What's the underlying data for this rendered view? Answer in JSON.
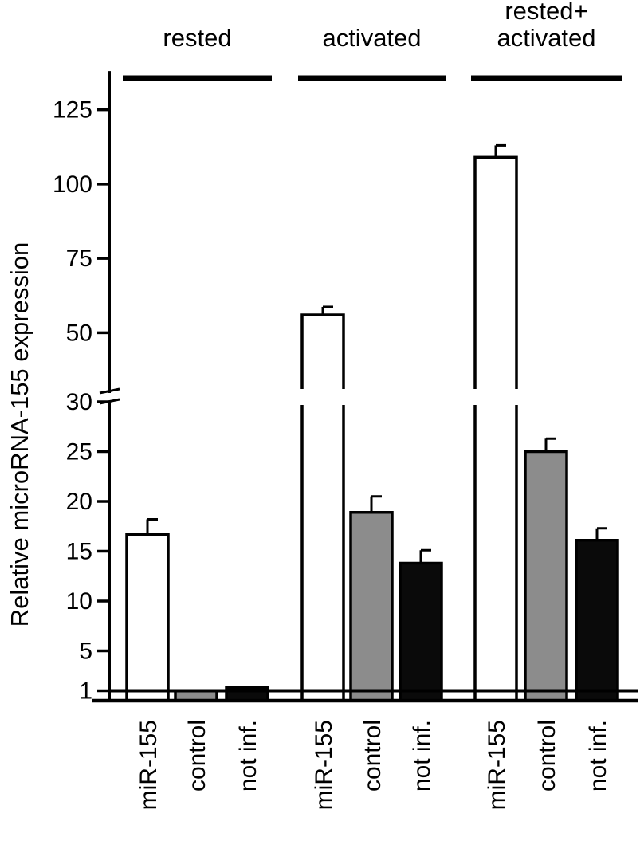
{
  "chart_data": {
    "type": "bar",
    "title": "",
    "xlabel": "",
    "ylabel": "Relative microRNA-155 expression",
    "y_axis": {
      "broken": true,
      "lower_segment": {
        "range": [
          0,
          30
        ],
        "ticks": [
          1,
          5,
          10,
          15,
          20,
          25,
          30
        ]
      },
      "upper_segment": {
        "range": [
          30,
          138
        ],
        "ticks": [
          50,
          75,
          100,
          125
        ]
      },
      "reference_line": 1
    },
    "groups": [
      {
        "label": "rested",
        "label_lines": [
          "rested"
        ],
        "category_indices": [
          0,
          1,
          2
        ]
      },
      {
        "label": "activated",
        "label_lines": [
          "activated"
        ],
        "category_indices": [
          3,
          4,
          5
        ]
      },
      {
        "label": "rested+ activated",
        "label_lines": [
          "rested+",
          "activated"
        ],
        "category_indices": [
          6,
          7,
          8
        ]
      }
    ],
    "categories": [
      "miR-155",
      "control",
      "not inf.",
      "miR-155",
      "control",
      "not inf.",
      "miR-155",
      "control",
      "not inf."
    ],
    "values": [
      16.7,
      1.0,
      1.3,
      56.0,
      18.9,
      13.8,
      109.0,
      25.0,
      16.1
    ],
    "errors": [
      1.5,
      0.0,
      0.0,
      2.7,
      1.6,
      1.3,
      4.0,
      1.3,
      1.2
    ],
    "colors": {
      "miR-155": "#ffffff",
      "control": "#8c8c8c",
      "not inf.": "#0a0a0a",
      "axis": "#000000"
    },
    "grid": false,
    "legend": "none"
  }
}
